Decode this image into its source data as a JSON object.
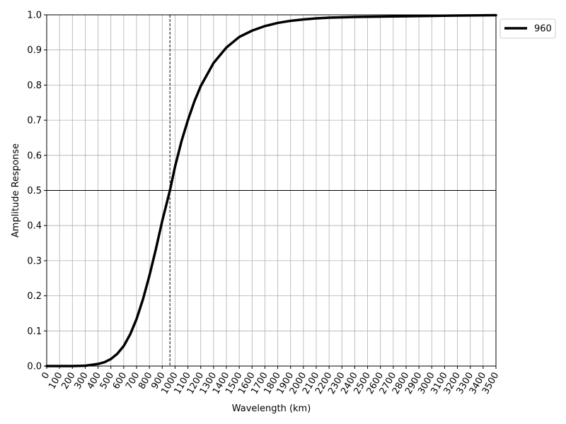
{
  "chart_data": {
    "type": "line",
    "xlabel": "Wavelength (km)",
    "ylabel": "Amplitude Response",
    "xlim": [
      0,
      3500
    ],
    "ylim": [
      0,
      1.0
    ],
    "x_ticks": [
      0,
      100,
      200,
      300,
      400,
      500,
      600,
      700,
      800,
      900,
      1000,
      1100,
      1200,
      1300,
      1400,
      1500,
      1600,
      1700,
      1800,
      1900,
      2000,
      2100,
      2200,
      2300,
      2400,
      2500,
      2600,
      2700,
      2800,
      2900,
      3000,
      3100,
      3200,
      3300,
      3400,
      3500
    ],
    "y_ticks": [
      0.0,
      0.1,
      0.2,
      0.3,
      0.4,
      0.5,
      0.6,
      0.7,
      0.8,
      0.9,
      1.0
    ],
    "y_tick_labels": [
      "0.0",
      "0.1",
      "0.2",
      "0.3",
      "0.4",
      "0.5",
      "0.6",
      "0.7",
      "0.8",
      "0.9",
      "1.0"
    ],
    "grid": true,
    "legend_position": "outside-top-right",
    "reference_lines": [
      {
        "orientation": "horizontal",
        "value": 0.5,
        "style": "solid",
        "color": "#000000"
      },
      {
        "orientation": "vertical",
        "value": 960,
        "style": "dashed",
        "color": "#000000"
      }
    ],
    "series": [
      {
        "name": "960",
        "color": "#000000",
        "x": [
          0,
          100,
          200,
          300,
          400,
          450,
          500,
          550,
          600,
          650,
          700,
          750,
          800,
          850,
          900,
          960,
          1000,
          1050,
          1100,
          1150,
          1200,
          1300,
          1400,
          1500,
          1600,
          1700,
          1800,
          1900,
          2000,
          2100,
          2200,
          2400,
          2600,
          2800,
          3000,
          3200,
          3500
        ],
        "y": [
          0.0,
          0.0,
          0.0,
          0.001,
          0.006,
          0.011,
          0.02,
          0.035,
          0.057,
          0.09,
          0.134,
          0.19,
          0.257,
          0.332,
          0.413,
          0.5,
          0.568,
          0.64,
          0.7,
          0.753,
          0.797,
          0.863,
          0.907,
          0.937,
          0.955,
          0.968,
          0.977,
          0.983,
          0.987,
          0.99,
          0.992,
          0.994,
          0.995,
          0.996,
          0.997,
          0.998,
          0.999
        ]
      }
    ]
  }
}
